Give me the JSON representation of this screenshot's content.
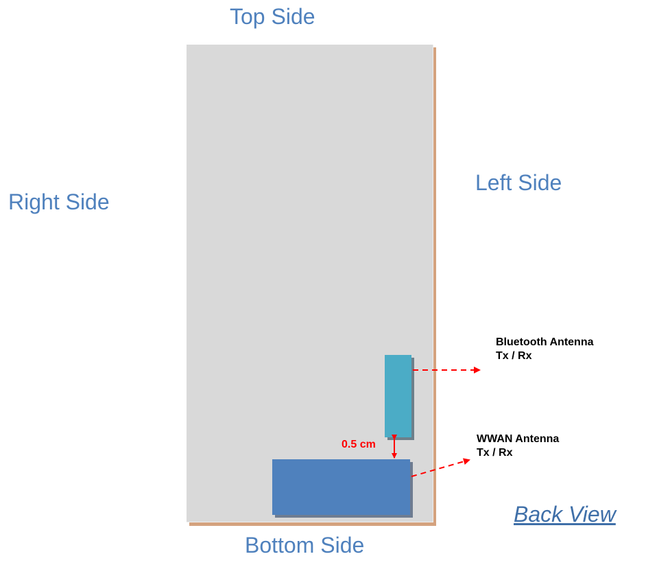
{
  "sides": {
    "top": "Top Side",
    "right": "Right Side",
    "left": "Left Side",
    "bottom": "Bottom Side"
  },
  "view_label": "Back View",
  "antennas": {
    "bluetooth": {
      "name": "Bluetooth Antenna",
      "mode": "Tx / Rx",
      "color": "#4bacc6"
    },
    "wwan": {
      "name": "WWAN Antenna",
      "mode": "Tx / Rx",
      "color": "#4f81bd"
    }
  },
  "separation": "0.5 cm",
  "colors": {
    "side_label": "#4f81bd",
    "device_body": "#d9d9d9",
    "arrow": "#ff0000"
  }
}
